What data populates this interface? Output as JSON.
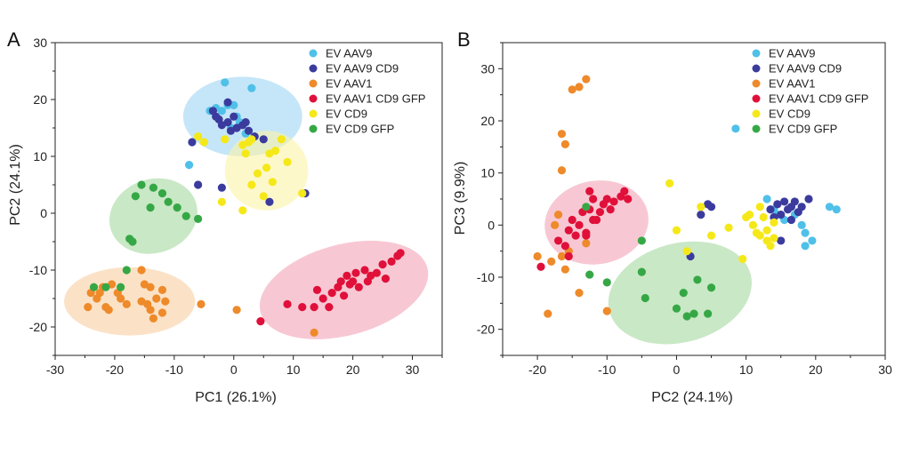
{
  "colors": {
    "EV AAV9": "#4fc0e8",
    "EV AAV9 CD9": "#3b3b9e",
    "EV AAV1": "#ee8a2a",
    "EV AAV1 CD9 GFP": "#e0103a",
    "EV CD9": "#f5e818",
    "EV CD9 GFP": "#35a845"
  },
  "chart_data": [
    {
      "type": "scatter",
      "panel_label": "A",
      "xlabel": "PC1 (26.1%)",
      "ylabel": "PC2 (24.1%)",
      "xlim": [
        -30,
        35
      ],
      "ylim": [
        -25,
        30
      ],
      "xticks": [
        -30,
        -20,
        -10,
        0,
        10,
        20,
        30
      ],
      "yticks": [
        -20,
        -10,
        0,
        10,
        20,
        30
      ],
      "legend": "top-right",
      "ellipses": [
        {
          "group": "EV AAV9",
          "cx": 1.5,
          "cy": 17,
          "rx": 10,
          "ry": 7,
          "angle": 0,
          "fill": "#9fd6f3"
        },
        {
          "group": "EV CD9",
          "cx": 5.5,
          "cy": 7.5,
          "rx": 7,
          "ry": 7,
          "angle": 0,
          "fill": "#fbf3a6"
        },
        {
          "group": "EV CD9 GFP",
          "cx": -13.5,
          "cy": -0.5,
          "rx": 7.5,
          "ry": 6.5,
          "angle": -18,
          "fill": "#a5d9a0"
        },
        {
          "group": "EV AAV1",
          "cx": -17.5,
          "cy": -15.5,
          "rx": 11,
          "ry": 6,
          "angle": 0,
          "fill": "#f8cfa2"
        },
        {
          "group": "EV AAV1 CD9 GFP",
          "cx": 18.5,
          "cy": -13.5,
          "rx": 14.5,
          "ry": 8,
          "angle": -15,
          "fill": "#f2a3b6"
        }
      ],
      "series": [
        {
          "name": "EV AAV9",
          "points": [
            [
              -1.5,
              23
            ],
            [
              3,
              22
            ],
            [
              -4,
              18
            ],
            [
              -3,
              18.5
            ],
            [
              -2,
              18
            ],
            [
              -1,
              19
            ],
            [
              0,
              19
            ],
            [
              0.5,
              17
            ],
            [
              1,
              16
            ],
            [
              2,
              14
            ],
            [
              -7.5,
              8.5
            ],
            [
              -0.5,
              15
            ]
          ]
        },
        {
          "name": "EV AAV9 CD9",
          "points": [
            [
              -3.5,
              18
            ],
            [
              -3,
              17
            ],
            [
              -2.5,
              16.5
            ],
            [
              -2,
              15.5
            ],
            [
              -1,
              16
            ],
            [
              -0.5,
              14.5
            ],
            [
              0,
              17
            ],
            [
              0.5,
              15
            ],
            [
              1.5,
              15.5
            ],
            [
              2.5,
              14.5
            ],
            [
              3.5,
              13.5
            ],
            [
              5,
              13
            ],
            [
              -7,
              12.5
            ],
            [
              -6,
              5
            ],
            [
              -2,
              4.5
            ],
            [
              6,
              2
            ],
            [
              12,
              3.5
            ],
            [
              -1,
              19.5
            ],
            [
              2,
              16
            ]
          ]
        },
        {
          "name": "EV AAV1",
          "points": [
            [
              -24.5,
              -16.5
            ],
            [
              -23,
              -15
            ],
            [
              -24,
              -14
            ],
            [
              -22.5,
              -14
            ],
            [
              -22,
              -13
            ],
            [
              -20.5,
              -12.5
            ],
            [
              -21.5,
              -16.5
            ],
            [
              -21,
              -17
            ],
            [
              -19,
              -15
            ],
            [
              -18,
              -16
            ],
            [
              -15.5,
              -10
            ],
            [
              -15,
              -12.5
            ],
            [
              -14,
              -13
            ],
            [
              -13,
              -15
            ],
            [
              -12,
              -13.5
            ],
            [
              -11.5,
              -15.5
            ],
            [
              -14.5,
              -16
            ],
            [
              -14,
              -17
            ],
            [
              -13.5,
              -18.5
            ],
            [
              -12,
              -17.5
            ],
            [
              -5.5,
              -16
            ],
            [
              -15.5,
              -15.5
            ],
            [
              -19.5,
              -14
            ],
            [
              0.5,
              -17
            ],
            [
              13.5,
              -21
            ]
          ]
        },
        {
          "name": "EV AAV1 CD9 GFP",
          "points": [
            [
              4.5,
              -19
            ],
            [
              9,
              -16
            ],
            [
              11.5,
              -16.5
            ],
            [
              14,
              -13.5
            ],
            [
              15,
              -15
            ],
            [
              16,
              -16.5
            ],
            [
              16.5,
              -14
            ],
            [
              17.5,
              -13
            ],
            [
              18,
              -12
            ],
            [
              18.5,
              -14.5
            ],
            [
              19,
              -11
            ],
            [
              20,
              -12
            ],
            [
              20.5,
              -10.5
            ],
            [
              21,
              -13
            ],
            [
              22,
              -10
            ],
            [
              22.5,
              -12
            ],
            [
              23,
              -11
            ],
            [
              24,
              -10.5
            ],
            [
              25,
              -9
            ],
            [
              25.5,
              -11.5
            ],
            [
              26.5,
              -8.5
            ],
            [
              27.5,
              -7.5
            ],
            [
              28,
              -7
            ],
            [
              19.5,
              -12.5
            ],
            [
              13.5,
              -16.5
            ]
          ]
        },
        {
          "name": "EV CD9",
          "points": [
            [
              -6,
              13.5
            ],
            [
              -5,
              12.5
            ],
            [
              -1.5,
              13
            ],
            [
              1.5,
              12
            ],
            [
              2,
              10.5
            ],
            [
              2.5,
              12.5
            ],
            [
              3,
              13
            ],
            [
              6,
              10.5
            ],
            [
              7,
              11
            ],
            [
              8,
              13
            ],
            [
              9,
              9
            ],
            [
              4,
              7
            ],
            [
              5.5,
              8
            ],
            [
              3,
              5
            ],
            [
              1.5,
              0.5
            ],
            [
              -2,
              2
            ],
            [
              11.5,
              3.5
            ],
            [
              6.5,
              5.5
            ],
            [
              5,
              3
            ]
          ]
        },
        {
          "name": "EV CD9 GFP",
          "points": [
            [
              -15.5,
              5
            ],
            [
              -13.5,
              4.5
            ],
            [
              -12,
              3.5
            ],
            [
              -11,
              2
            ],
            [
              -9.5,
              1
            ],
            [
              -8,
              -0.5
            ],
            [
              -6,
              -1
            ],
            [
              -14,
              1
            ],
            [
              -16.5,
              3
            ],
            [
              -17,
              -5
            ],
            [
              -17.5,
              -4.5
            ],
            [
              -18,
              -10
            ],
            [
              -19,
              -13
            ],
            [
              -21.5,
              -13
            ],
            [
              -23.5,
              -13
            ]
          ]
        }
      ]
    },
    {
      "type": "scatter",
      "panel_label": "B",
      "xlabel": "PC2 (24.1%)",
      "ylabel": "PC3 (9.9%)",
      "xlim": [
        -25,
        30
      ],
      "ylim": [
        -25,
        35
      ],
      "xticks": [
        -20,
        -10,
        0,
        10,
        20,
        30
      ],
      "yticks": [
        -20,
        -10,
        0,
        10,
        20,
        30
      ],
      "legend": "top-right",
      "ellipses": [
        {
          "group": "EV AAV1 CD9 GFP",
          "cx": -11.5,
          "cy": 0.5,
          "rx": 7.5,
          "ry": 8,
          "angle": -10,
          "fill": "#f2a3b6"
        },
        {
          "group": "EV CD9 GFP",
          "cx": 0.5,
          "cy": -13,
          "rx": 10.5,
          "ry": 9.5,
          "angle": -15,
          "fill": "#a5d9a0"
        }
      ],
      "series": [
        {
          "name": "EV AAV9",
          "points": [
            [
              8.5,
              18.5
            ],
            [
              13,
              5
            ],
            [
              14,
              3
            ],
            [
              15.5,
              1
            ],
            [
              18,
              0
            ],
            [
              18.5,
              -1.5
            ],
            [
              18.5,
              -4
            ],
            [
              19.5,
              -3
            ],
            [
              22,
              3.5
            ],
            [
              23,
              3
            ],
            [
              17,
              2
            ],
            [
              14.5,
              2
            ]
          ]
        },
        {
          "name": "EV AAV9 CD9",
          "points": [
            [
              3.5,
              2
            ],
            [
              4.5,
              4
            ],
            [
              5,
              3.5
            ],
            [
              13.5,
              3
            ],
            [
              14,
              1.5
            ],
            [
              14.5,
              4
            ],
            [
              15,
              2
            ],
            [
              15.5,
              4.5
            ],
            [
              16,
              3
            ],
            [
              16.5,
              3.5
            ],
            [
              17,
              4.5
            ],
            [
              17.5,
              2.5
            ],
            [
              18,
              3.5
            ],
            [
              19,
              5
            ],
            [
              15,
              -3
            ],
            [
              16.5,
              1
            ],
            [
              2,
              -6
            ]
          ]
        },
        {
          "name": "EV AAV1",
          "points": [
            [
              -15,
              26
            ],
            [
              -14,
              26.5
            ],
            [
              -13,
              28
            ],
            [
              -16.5,
              17.5
            ],
            [
              -16,
              15.5
            ],
            [
              -16.5,
              10.5
            ],
            [
              -17,
              2
            ],
            [
              -17.5,
              0
            ],
            [
              -18,
              -7
            ],
            [
              -18.5,
              -17
            ],
            [
              -16,
              -8.5
            ],
            [
              -15.5,
              -5
            ],
            [
              -16.5,
              -6
            ],
            [
              -14,
              -13
            ],
            [
              -13,
              -3.5
            ],
            [
              -10,
              -16.5
            ],
            [
              -20,
              -6
            ]
          ]
        },
        {
          "name": "EV AAV1 CD9 GFP",
          "points": [
            [
              -19.5,
              -8
            ],
            [
              -17,
              -3
            ],
            [
              -16,
              -4
            ],
            [
              -15.5,
              -1
            ],
            [
              -15,
              1
            ],
            [
              -14.5,
              -2
            ],
            [
              -14,
              0
            ],
            [
              -13.5,
              2.5
            ],
            [
              -13,
              -1.5
            ],
            [
              -12.5,
              3
            ],
            [
              -12,
              5
            ],
            [
              -12.5,
              6.5
            ],
            [
              -11.5,
              1
            ],
            [
              -11,
              2.5
            ],
            [
              -10.5,
              4
            ],
            [
              -10,
              5
            ],
            [
              -9.5,
              3
            ],
            [
              -9,
              4.5
            ],
            [
              -8,
              5.5
            ],
            [
              -7.5,
              6.5
            ],
            [
              -7,
              5
            ],
            [
              -13,
              -2
            ],
            [
              -15.5,
              -6
            ],
            [
              -12,
              1
            ]
          ]
        },
        {
          "name": "EV CD9",
          "points": [
            [
              -1,
              8
            ],
            [
              0,
              -1
            ],
            [
              1.5,
              -5
            ],
            [
              3.5,
              3.5
            ],
            [
              5,
              -2
            ],
            [
              7.5,
              -0.5
            ],
            [
              9.5,
              -6.5
            ],
            [
              10.5,
              2
            ],
            [
              11,
              0
            ],
            [
              11.5,
              -1.5
            ],
            [
              12,
              3.5
            ],
            [
              12.5,
              1.5
            ],
            [
              13,
              -1
            ],
            [
              13.5,
              -4
            ],
            [
              14,
              0.5
            ],
            [
              12,
              -2
            ],
            [
              13,
              -3
            ],
            [
              14,
              -2.5
            ],
            [
              10,
              1.5
            ]
          ]
        },
        {
          "name": "EV CD9 GFP",
          "points": [
            [
              -13,
              3.5
            ],
            [
              -12.5,
              -9.5
            ],
            [
              -10,
              -11
            ],
            [
              -5,
              -3
            ],
            [
              -5,
              -9
            ],
            [
              -4.5,
              -14
            ],
            [
              0,
              -16
            ],
            [
              1,
              -13
            ],
            [
              1.5,
              -17.5
            ],
            [
              2.5,
              -17
            ],
            [
              3,
              -10.5
            ],
            [
              4.5,
              -17
            ],
            [
              5,
              -12
            ]
          ]
        }
      ]
    }
  ]
}
